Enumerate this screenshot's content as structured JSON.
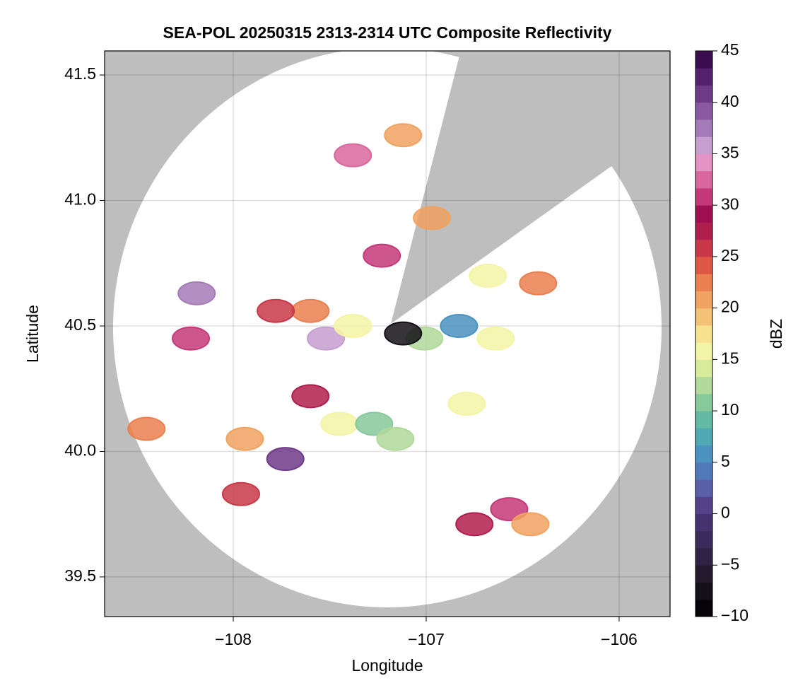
{
  "chart_data": {
    "type": "radar",
    "title": "SEA-POL 20250315 2313-2314 UTC Composite Reflectivity",
    "x_label": "Longitude",
    "y_label": "Latitude",
    "colorbar_label": "dBZ",
    "xlim": [
      -108.667,
      -105.736
    ],
    "xticks": [
      {
        "value": -108,
        "label": "−108"
      },
      {
        "value": -107,
        "label": "−107"
      },
      {
        "value": -106,
        "label": "−106"
      }
    ],
    "ylim": [
      39.342,
      41.596
    ],
    "yticks": [
      39.5,
      {
        "value": 40,
        "label": "40.0"
      },
      40.5,
      {
        "value": 41,
        "label": "41.0"
      },
      41.5
    ],
    "grid": true,
    "clim": [
      -10,
      45
    ],
    "cticks": [
      {
        "value": -10,
        "label": "−10"
      },
      {
        "value": -5,
        "label": "−5"
      },
      0,
      5,
      10,
      15,
      20,
      25,
      30,
      35,
      40,
      45
    ],
    "colormap": [
      "#050308",
      "#141018",
      "#231a2e",
      "#2f2244",
      "#3b2a5c",
      "#473270",
      "#55428a",
      "#5a5fa8",
      "#4f79b8",
      "#4a92bf",
      "#4ea9b4",
      "#62baa4",
      "#86c99a",
      "#b0d99a",
      "#d8eb9d",
      "#f4f4a6",
      "#f7e08e",
      "#f3c274",
      "#f0a260",
      "#ea7f4f",
      "#dd5744",
      "#c93848",
      "#b01e4e",
      "#9e1050",
      "#c43a78",
      "#d9669e",
      "#e394c4",
      "#c69ed0",
      "#a57ab8",
      "#8a58a0",
      "#6e3a88",
      "#55206e",
      "#3c0c50"
    ],
    "x": [
      -107.6,
      -107.78,
      -107.52,
      -107.38,
      -108.22,
      -108.19,
      -107.23,
      -107.38,
      -107.12,
      -107.6,
      -107.73,
      -107.45,
      -107.27,
      -107.16,
      -107.96,
      -107.94,
      -107.01,
      -106.83,
      -106.64,
      -106.42,
      -106.57,
      -106.75,
      -106.46,
      -106.79,
      -108.45,
      -107.12,
      -106.97,
      -106.68
    ],
    "y": [
      40.56,
      40.56,
      40.45,
      40.5,
      40.45,
      40.63,
      40.78,
      41.18,
      41.26,
      40.22,
      39.97,
      40.11,
      40.11,
      40.05,
      39.83,
      40.05,
      40.45,
      40.5,
      40.45,
      40.67,
      39.77,
      39.71,
      39.71,
      40.19,
      40.09,
      40.47,
      40.93,
      40.7
    ],
    "values": [
      22,
      25,
      35,
      15,
      30,
      38,
      30,
      32,
      20,
      28,
      40,
      15,
      10,
      12,
      25,
      20,
      12,
      5,
      15,
      22,
      30,
      28,
      20,
      15,
      22,
      -8,
      20,
      15
    ]
  }
}
